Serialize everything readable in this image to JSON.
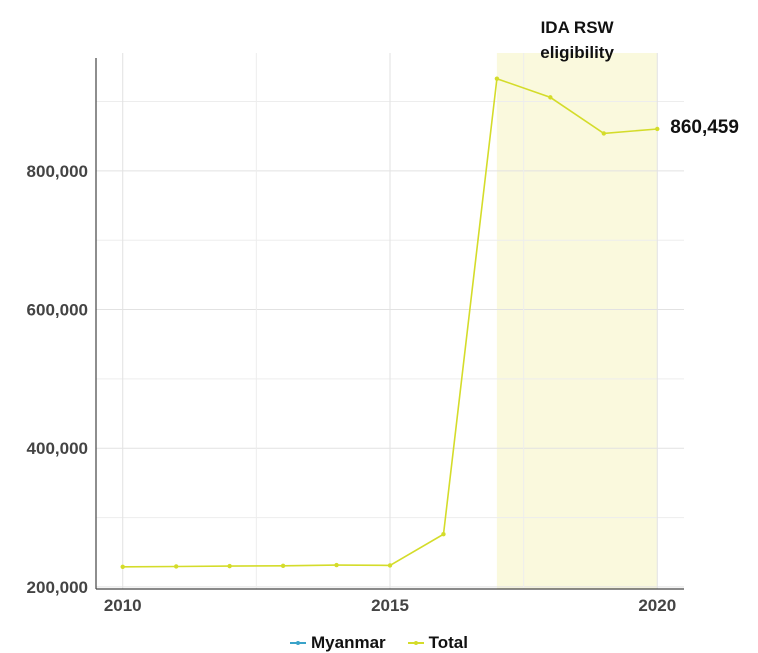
{
  "chart_data": {
    "type": "line",
    "x": [
      2010,
      2011,
      2012,
      2013,
      2014,
      2015,
      2016,
      2017,
      2018,
      2019,
      2020
    ],
    "series": [
      {
        "name": "Total",
        "color": "#d4dc2a",
        "values": [
          229000,
          229500,
          230000,
          230500,
          231500,
          231000,
          276000,
          933000,
          906000,
          854000,
          860459
        ]
      }
    ],
    "legend": [
      {
        "name": "Myanmar",
        "color": "#3aa3c9"
      },
      {
        "name": "Total",
        "color": "#d4dc2a"
      }
    ],
    "x_ticks": [
      2010,
      2015,
      2020
    ],
    "x_tick_labels": [
      "2010",
      "2015",
      "2020"
    ],
    "y_ticks": [
      200000,
      400000,
      600000,
      800000
    ],
    "y_tick_labels": [
      "200,000",
      "400,000",
      "600,000",
      "800,000"
    ],
    "xlim": [
      2009.5,
      2020.5
    ],
    "ylim": [
      197000,
      970000
    ],
    "grid": true,
    "legend_position": "bottom",
    "highlight": {
      "x_start": 2017,
      "x_end": 2020,
      "label_lines": [
        "IDA RSW",
        "eligibility"
      ],
      "color": "#faf9dd"
    },
    "end_label": "860,459"
  }
}
